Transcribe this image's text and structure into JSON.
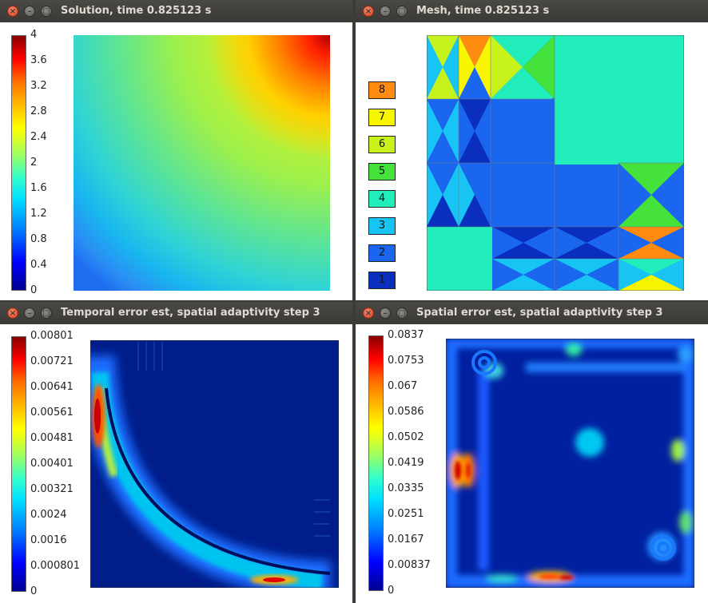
{
  "windows": {
    "solution": {
      "title": "Solution, time 0.825123 s"
    },
    "mesh": {
      "title": "Mesh, time 0.825123 s"
    },
    "temporal": {
      "title": "Temporal error est, spatial adaptivity step 3"
    },
    "spatial": {
      "title": "Spatial error est, spatial adaptivity step 3"
    }
  },
  "solution_ticks": [
    "4",
    "3.6",
    "3.2",
    "2.8",
    "2.4",
    "2",
    "1.6",
    "1.2",
    "0.8",
    "0.4",
    "0"
  ],
  "temporal_ticks": [
    "0.00801",
    "0.00721",
    "0.00641",
    "0.00561",
    "0.00481",
    "0.00401",
    "0.00321",
    "0.0024",
    "0.0016",
    "0.000801",
    "0"
  ],
  "spatial_ticks": [
    "0.0837",
    "0.0753",
    "0.067",
    "0.0586",
    "0.0502",
    "0.0419",
    "0.0335",
    "0.0251",
    "0.0167",
    "0.00837",
    "0"
  ],
  "mesh_legend": [
    {
      "label": "8",
      "color": "#ff8c10"
    },
    {
      "label": "7",
      "color": "#f7f500"
    },
    {
      "label": "6",
      "color": "#c8f21c"
    },
    {
      "label": "5",
      "color": "#44e23a"
    },
    {
      "label": "4",
      "color": "#22eebb"
    },
    {
      "label": "3",
      "color": "#18c4f4"
    },
    {
      "label": "2",
      "color": "#1a66ee"
    },
    {
      "label": "1",
      "color": "#0a2fbf"
    }
  ],
  "colors": {
    "titlebar": "#3c3b37",
    "close": "#e25b34"
  },
  "icons": {
    "close": "close-icon",
    "minimize": "minimize-icon",
    "maximize": "maximize-icon"
  }
}
